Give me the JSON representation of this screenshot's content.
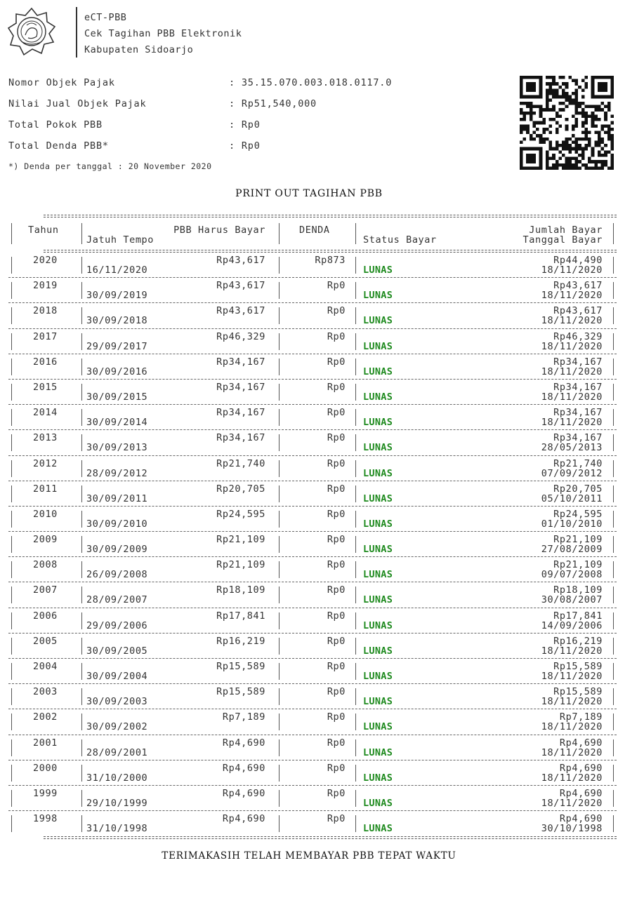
{
  "header": {
    "line1": "eCT-PBB",
    "line2": "Cek Tagihan PBB Elektronik",
    "line3": "Kabupaten Sidoarjo"
  },
  "info": {
    "rows": [
      {
        "label": "Nomor Objek Pajak",
        "value": ": 35.15.070.003.018.0117.0"
      },
      {
        "label": "Nilai Jual Objek Pajak",
        "value": ": Rp51,540,000"
      },
      {
        "label": "Total Pokok PBB",
        "value": ": Rp0"
      },
      {
        "label": "Total Denda PBB*",
        "value": ": Rp0"
      }
    ],
    "note": "*) Denda per tanggal : 20 November 2020"
  },
  "print_title": "PRINT OUT TAGIHAN PBB",
  "table": {
    "headers": {
      "tahun": "Tahun",
      "pbb": "PBB Harus Bayar",
      "jatuh_tempo": "Jatuh Tempo",
      "denda": "DENDA",
      "status": "Status Bayar",
      "jumlah": "Jumlah Bayar",
      "tanggal": "Tanggal Bayar"
    },
    "rows": [
      {
        "tahun": "2020",
        "pbb": "Rp43,617",
        "jatuh": "16/11/2020",
        "denda": "Rp873",
        "status": "LUNAS",
        "jumlah": "Rp44,490",
        "tanggal": "18/11/2020"
      },
      {
        "tahun": "2019",
        "pbb": "Rp43,617",
        "jatuh": "30/09/2019",
        "denda": "Rp0",
        "status": "LUNAS",
        "jumlah": "Rp43,617",
        "tanggal": "18/11/2020"
      },
      {
        "tahun": "2018",
        "pbb": "Rp43,617",
        "jatuh": "30/09/2018",
        "denda": "Rp0",
        "status": "LUNAS",
        "jumlah": "Rp43,617",
        "tanggal": "18/11/2020"
      },
      {
        "tahun": "2017",
        "pbb": "Rp46,329",
        "jatuh": "29/09/2017",
        "denda": "Rp0",
        "status": "LUNAS",
        "jumlah": "Rp46,329",
        "tanggal": "18/11/2020"
      },
      {
        "tahun": "2016",
        "pbb": "Rp34,167",
        "jatuh": "30/09/2016",
        "denda": "Rp0",
        "status": "LUNAS",
        "jumlah": "Rp34,167",
        "tanggal": "18/11/2020"
      },
      {
        "tahun": "2015",
        "pbb": "Rp34,167",
        "jatuh": "30/09/2015",
        "denda": "Rp0",
        "status": "LUNAS",
        "jumlah": "Rp34,167",
        "tanggal": "18/11/2020"
      },
      {
        "tahun": "2014",
        "pbb": "Rp34,167",
        "jatuh": "30/09/2014",
        "denda": "Rp0",
        "status": "LUNAS",
        "jumlah": "Rp34,167",
        "tanggal": "18/11/2020"
      },
      {
        "tahun": "2013",
        "pbb": "Rp34,167",
        "jatuh": "30/09/2013",
        "denda": "Rp0",
        "status": "LUNAS",
        "jumlah": "Rp34,167",
        "tanggal": "28/05/2013"
      },
      {
        "tahun": "2012",
        "pbb": "Rp21,740",
        "jatuh": "28/09/2012",
        "denda": "Rp0",
        "status": "LUNAS",
        "jumlah": "Rp21,740",
        "tanggal": "07/09/2012"
      },
      {
        "tahun": "2011",
        "pbb": "Rp20,705",
        "jatuh": "30/09/2011",
        "denda": "Rp0",
        "status": "LUNAS",
        "jumlah": "Rp20,705",
        "tanggal": "05/10/2011"
      },
      {
        "tahun": "2010",
        "pbb": "Rp24,595",
        "jatuh": "30/09/2010",
        "denda": "Rp0",
        "status": "LUNAS",
        "jumlah": "Rp24,595",
        "tanggal": "01/10/2010"
      },
      {
        "tahun": "2009",
        "pbb": "Rp21,109",
        "jatuh": "30/09/2009",
        "denda": "Rp0",
        "status": "LUNAS",
        "jumlah": "Rp21,109",
        "tanggal": "27/08/2009"
      },
      {
        "tahun": "2008",
        "pbb": "Rp21,109",
        "jatuh": "26/09/2008",
        "denda": "Rp0",
        "status": "LUNAS",
        "jumlah": "Rp21,109",
        "tanggal": "09/07/2008"
      },
      {
        "tahun": "2007",
        "pbb": "Rp18,109",
        "jatuh": "28/09/2007",
        "denda": "Rp0",
        "status": "LUNAS",
        "jumlah": "Rp18,109",
        "tanggal": "30/08/2007"
      },
      {
        "tahun": "2006",
        "pbb": "Rp17,841",
        "jatuh": "29/09/2006",
        "denda": "Rp0",
        "status": "LUNAS",
        "jumlah": "Rp17,841",
        "tanggal": "14/09/2006"
      },
      {
        "tahun": "2005",
        "pbb": "Rp16,219",
        "jatuh": "30/09/2005",
        "denda": "Rp0",
        "status": "LUNAS",
        "jumlah": "Rp16,219",
        "tanggal": "18/11/2020"
      },
      {
        "tahun": "2004",
        "pbb": "Rp15,589",
        "jatuh": "30/09/2004",
        "denda": "Rp0",
        "status": "LUNAS",
        "jumlah": "Rp15,589",
        "tanggal": "18/11/2020"
      },
      {
        "tahun": "2003",
        "pbb": "Rp15,589",
        "jatuh": "30/09/2003",
        "denda": "Rp0",
        "status": "LUNAS",
        "jumlah": "Rp15,589",
        "tanggal": "18/11/2020"
      },
      {
        "tahun": "2002",
        "pbb": "Rp7,189",
        "jatuh": "30/09/2002",
        "denda": "Rp0",
        "status": "LUNAS",
        "jumlah": "Rp7,189",
        "tanggal": "18/11/2020"
      },
      {
        "tahun": "2001",
        "pbb": "Rp4,690",
        "jatuh": "28/09/2001",
        "denda": "Rp0",
        "status": "LUNAS",
        "jumlah": "Rp4,690",
        "tanggal": "18/11/2020"
      },
      {
        "tahun": "2000",
        "pbb": "Rp4,690",
        "jatuh": "31/10/2000",
        "denda": "Rp0",
        "status": "LUNAS",
        "jumlah": "Rp4,690",
        "tanggal": "18/11/2020"
      },
      {
        "tahun": "1999",
        "pbb": "Rp4,690",
        "jatuh": "29/10/1999",
        "denda": "Rp0",
        "status": "LUNAS",
        "jumlah": "Rp4,690",
        "tanggal": "18/11/2020"
      },
      {
        "tahun": "1998",
        "pbb": "Rp4,690",
        "jatuh": "31/10/1998",
        "denda": "Rp0",
        "status": "LUNAS",
        "jumlah": "Rp4,690",
        "tanggal": "30/10/1998"
      }
    ]
  },
  "footer": "TERIMAKASIH TELAH MEMBAYAR PBB TEPAT WAKTU",
  "colors": {
    "lunas": "#1e8a1e",
    "text": "#333333"
  }
}
